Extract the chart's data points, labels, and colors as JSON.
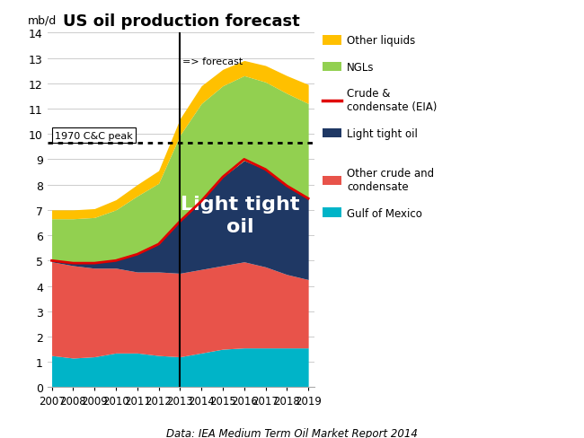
{
  "title": "US oil production forecast",
  "ylabel": "mb/d",
  "source": "Data: IEA Medium Term Oil Market Report 2014",
  "years": [
    2007,
    2008,
    2009,
    2010,
    2011,
    2012,
    2013,
    2014,
    2015,
    2016,
    2017,
    2018,
    2019
  ],
  "gulf_of_mexico": [
    1.25,
    1.15,
    1.2,
    1.35,
    1.35,
    1.25,
    1.2,
    1.35,
    1.5,
    1.55,
    1.55,
    1.55,
    1.55
  ],
  "other_crude": [
    3.7,
    3.65,
    3.5,
    3.35,
    3.2,
    3.3,
    3.3,
    3.3,
    3.3,
    3.4,
    3.2,
    2.9,
    2.7
  ],
  "light_tight_oil": [
    0.05,
    0.1,
    0.2,
    0.3,
    0.7,
    1.1,
    2.05,
    2.7,
    3.5,
    4.0,
    3.85,
    3.5,
    3.2
  ],
  "crude_condensate_line": [
    5.0,
    4.9,
    4.9,
    5.0,
    5.25,
    5.65,
    6.55,
    7.35,
    8.3,
    9.0,
    8.6,
    7.95,
    7.45
  ],
  "ngls": [
    1.65,
    1.75,
    1.8,
    2.0,
    2.3,
    2.4,
    3.4,
    3.85,
    3.6,
    3.35,
    3.45,
    3.65,
    3.75
  ],
  "other_liquids": [
    0.35,
    0.35,
    0.35,
    0.4,
    0.45,
    0.5,
    0.65,
    0.7,
    0.65,
    0.6,
    0.65,
    0.7,
    0.75
  ],
  "dotted_line_y": 9.65,
  "forecast_year": 2013,
  "colors": {
    "gulf_of_mexico": "#00b4c8",
    "other_crude": "#e8534a",
    "light_tight_oil": "#1f3864",
    "ngls": "#92d050",
    "other_liquids": "#ffc000",
    "crude_condensate_line": "#e00000"
  },
  "ylim": [
    0,
    14
  ],
  "yticks": [
    0,
    1,
    2,
    3,
    4,
    5,
    6,
    7,
    8,
    9,
    10,
    11,
    12,
    13,
    14
  ],
  "xtick_years": [
    2007,
    2008,
    2009,
    2010,
    2011,
    2012,
    2013,
    2014,
    2015,
    2016,
    2017,
    2018,
    2019
  ],
  "annotation_peak": "1970 C&C peak",
  "annotation_forecast": "=> forecast",
  "annotation_lto": "Light tight\noil"
}
